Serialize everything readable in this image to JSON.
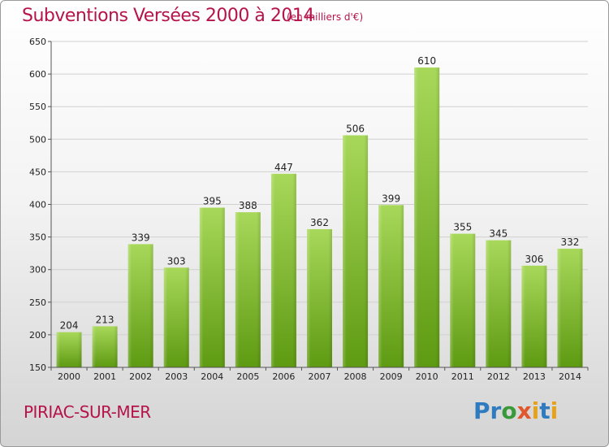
{
  "title": "Subventions Versées 2000 à 2014",
  "subtitle": "(en milliers d'€)",
  "place": "PIRIAC-SUR-MER",
  "logo": {
    "letters": [
      "P",
      "r",
      "o",
      "x",
      "i",
      "t",
      "i"
    ],
    "colors": [
      "#2f7bbf",
      "#2f7bbf",
      "#3a9a3a",
      "#e0562d",
      "#e6a21c",
      "#2f7bbf",
      "#e6a21c"
    ]
  },
  "colors": {
    "title": "#b5134a",
    "bar_light": "#a8d85a",
    "bar_dark": "#5e9a12",
    "grid": "#d0d0d0"
  },
  "chart_data": {
    "type": "bar",
    "title": "Subventions Versées 2000 à 2014",
    "subtitle": "(en milliers d'€)",
    "xlabel": "",
    "ylabel": "",
    "categories": [
      "2000",
      "2001",
      "2002",
      "2003",
      "2004",
      "2005",
      "2006",
      "2007",
      "2008",
      "2009",
      "2010",
      "2011",
      "2012",
      "2013",
      "2014"
    ],
    "values": [
      204,
      213,
      339,
      303,
      395,
      388,
      447,
      362,
      506,
      399,
      610,
      355,
      345,
      306,
      332
    ],
    "ylim": [
      150,
      650
    ],
    "yticks": [
      150,
      200,
      250,
      300,
      350,
      400,
      450,
      500,
      550,
      600,
      650
    ],
    "grid": true,
    "legend": "none"
  }
}
